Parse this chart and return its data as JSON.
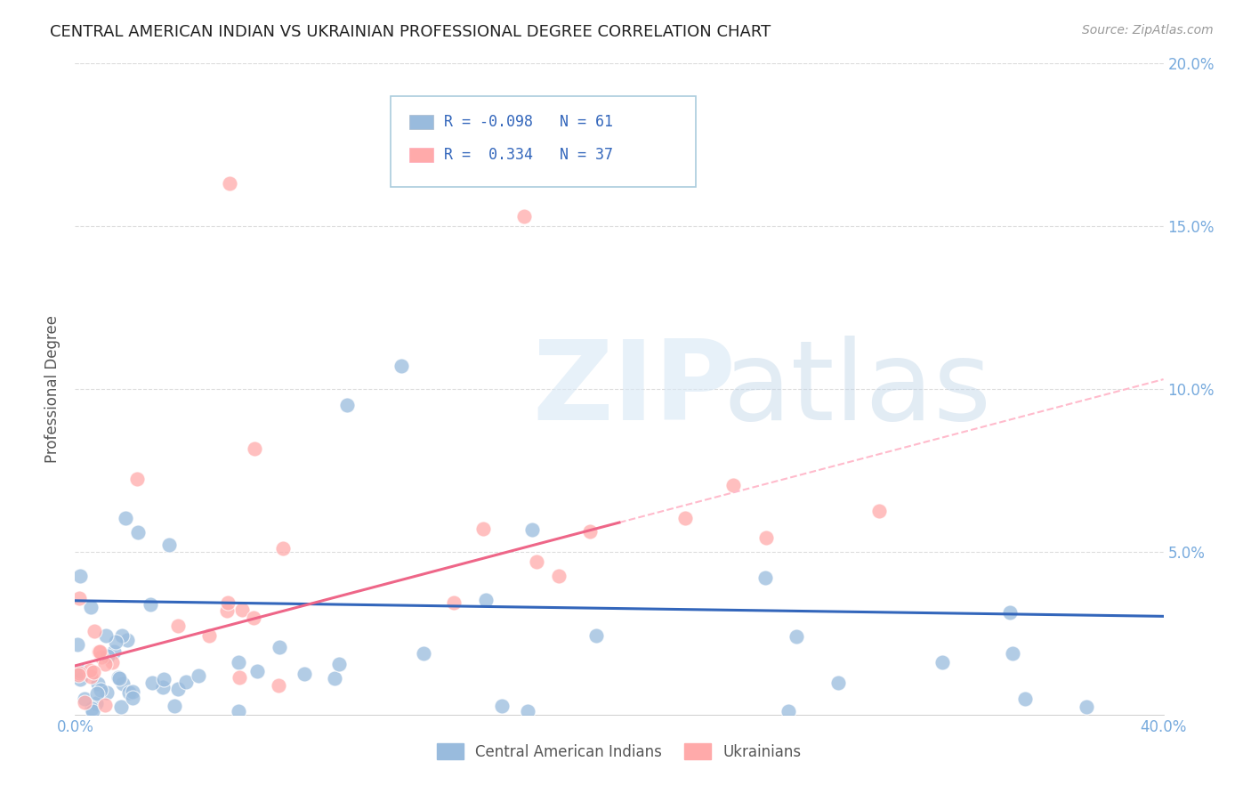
{
  "title": "CENTRAL AMERICAN INDIAN VS UKRAINIAN PROFESSIONAL DEGREE CORRELATION CHART",
  "source": "Source: ZipAtlas.com",
  "ylabel": "Professional Degree",
  "xlim": [
    0.0,
    0.4
  ],
  "ylim": [
    0.0,
    0.2
  ],
  "xtick_positions": [
    0.0,
    0.1,
    0.2,
    0.3,
    0.4
  ],
  "ytick_positions": [
    0.0,
    0.05,
    0.1,
    0.15,
    0.2
  ],
  "xtick_labels": [
    "0.0%",
    "",
    "",
    "",
    "40.0%"
  ],
  "ytick_labels_right": [
    "",
    "5.0%",
    "10.0%",
    "15.0%",
    "20.0%"
  ],
  "blue_color": "#99BBDD",
  "pink_color": "#FFAAAA",
  "blue_line_color": "#3366BB",
  "pink_line_color": "#EE6688",
  "pink_dash_color": "#FFBBCC",
  "legend_blue_label": "Central American Indians",
  "legend_pink_label": "Ukrainians",
  "R_blue": -0.098,
  "N_blue": 61,
  "R_pink": 0.334,
  "N_pink": 37,
  "background_color": "#FFFFFF",
  "grid_color": "#DDDDDD",
  "tick_color": "#77AADD",
  "blue_intercept": 0.035,
  "blue_slope": -0.012,
  "pink_intercept": 0.015,
  "pink_slope": 0.22
}
